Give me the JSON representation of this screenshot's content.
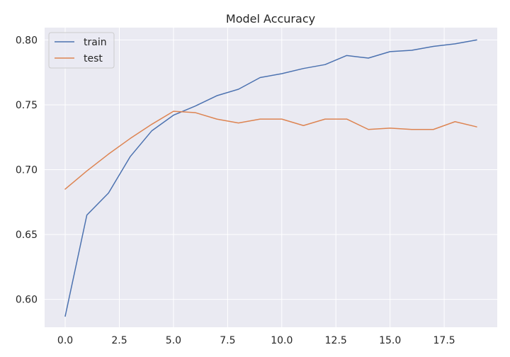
{
  "chart_data": {
    "type": "line",
    "title": "Model Accuracy",
    "xlabel": "",
    "ylabel": "",
    "xlim": [
      -0.95,
      19.95
    ],
    "ylim": [
      0.5785,
      0.8095
    ],
    "xticks": [
      0.0,
      2.5,
      5.0,
      7.5,
      10.0,
      12.5,
      15.0,
      17.5
    ],
    "xtick_labels": [
      "0.0",
      "2.5",
      "5.0",
      "7.5",
      "10.0",
      "12.5",
      "15.0",
      "17.5"
    ],
    "yticks": [
      0.6,
      0.65,
      0.7,
      0.75,
      0.8
    ],
    "ytick_labels": [
      "0.60",
      "0.65",
      "0.70",
      "0.75",
      "0.80"
    ],
    "grid": true,
    "legend_position": "top-left",
    "x": [
      0,
      1,
      2,
      3,
      4,
      5,
      6,
      7,
      8,
      9,
      10,
      11,
      12,
      13,
      14,
      15,
      16,
      17,
      18,
      19
    ],
    "series": [
      {
        "name": "train",
        "color": "#4c72b0",
        "values": [
          0.587,
          0.665,
          0.682,
          0.71,
          0.73,
          0.742,
          0.749,
          0.757,
          0.762,
          0.771,
          0.774,
          0.778,
          0.781,
          0.788,
          0.786,
          0.791,
          0.792,
          0.795,
          0.797,
          0.8
        ]
      },
      {
        "name": "test",
        "color": "#dd8452",
        "values": [
          0.685,
          0.699,
          0.712,
          0.724,
          0.735,
          0.745,
          0.744,
          0.739,
          0.736,
          0.739,
          0.739,
          0.734,
          0.739,
          0.739,
          0.731,
          0.732,
          0.731,
          0.731,
          0.737,
          0.733
        ]
      }
    ],
    "colors": {
      "background": "#eaeaf2",
      "grid": "#ffffff",
      "text": "#262626"
    }
  }
}
